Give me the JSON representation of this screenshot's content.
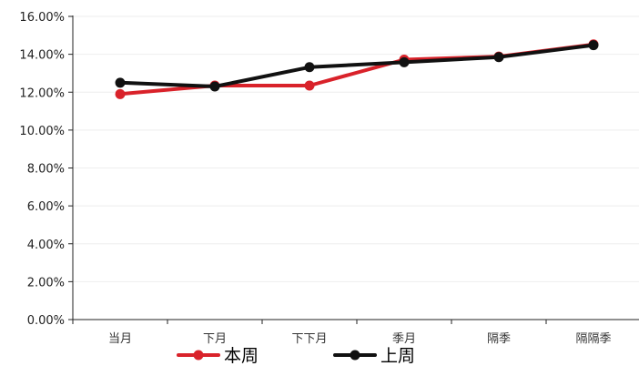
{
  "chart_data": {
    "type": "line",
    "categories": [
      "当月",
      "下月",
      "下下月",
      "季月",
      "隔季",
      "隔隔季"
    ],
    "series": [
      {
        "name": "本周",
        "color": "#d9222a",
        "values": [
          11.9,
          12.35,
          12.35,
          13.72,
          13.88,
          14.52
        ]
      },
      {
        "name": "上周",
        "color": "#111111",
        "values": [
          12.5,
          12.3,
          13.32,
          13.58,
          13.85,
          14.48
        ]
      }
    ],
    "ylim": [
      0,
      16
    ],
    "yticks": [
      0,
      2,
      4,
      6,
      8,
      10,
      12,
      14,
      16
    ],
    "ytick_labels": [
      "0.00%",
      "2.00%",
      "4.00%",
      "6.00%",
      "8.00%",
      "10.00%",
      "12.00%",
      "14.00%",
      "16.00%"
    ],
    "grid": true,
    "legend_position": "bottom"
  }
}
